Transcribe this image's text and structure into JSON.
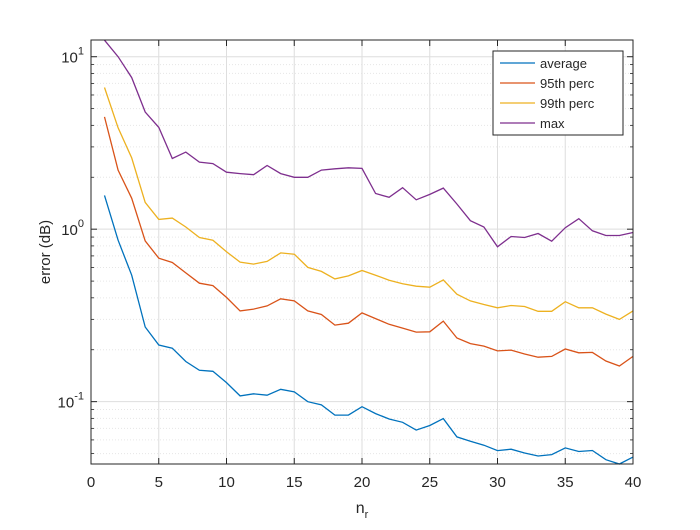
{
  "chart_data": {
    "type": "line",
    "title": "",
    "xlabel": "n",
    "xlabel_subscript": "r",
    "ylabel": "error (dB)",
    "xlim": [
      0,
      40
    ],
    "ylim": [
      0.0435,
      12.5
    ],
    "yscale": "log",
    "grid": true,
    "legend_position": "top-right",
    "xticks": [
      0,
      5,
      10,
      15,
      20,
      25,
      30,
      35,
      40
    ],
    "xtick_labels": [
      "0",
      "5",
      "10",
      "15",
      "20",
      "25",
      "30",
      "35",
      "40"
    ],
    "yticks": [
      0.1,
      1,
      10
    ],
    "ytick_labels": [
      {
        "base": "10",
        "exp": "-1"
      },
      {
        "base": "10",
        "exp": "0"
      },
      {
        "base": "10",
        "exp": "1"
      }
    ],
    "x": [
      1,
      2,
      3,
      4,
      5,
      6,
      7,
      8,
      9,
      10,
      11,
      12,
      13,
      14,
      15,
      16,
      17,
      18,
      19,
      20,
      21,
      22,
      23,
      24,
      25,
      26,
      27,
      28,
      29,
      30,
      31,
      32,
      33,
      34,
      35,
      36,
      37,
      38,
      39,
      40
    ],
    "series": [
      {
        "name": "average",
        "color": "#0072BD",
        "values": [
          1.57,
          0.863,
          0.541,
          0.271,
          0.213,
          0.204,
          0.171,
          0.152,
          0.15,
          0.129,
          0.108,
          0.111,
          0.109,
          0.118,
          0.114,
          0.1,
          0.0958,
          0.0836,
          0.0836,
          0.0935,
          0.0853,
          0.0793,
          0.0759,
          0.0684,
          0.0727,
          0.0797,
          0.0625,
          0.059,
          0.0559,
          0.052,
          0.053,
          0.0504,
          0.0484,
          0.0493,
          0.0539,
          0.0514,
          0.0521,
          0.0461,
          0.0432,
          0.0477
        ]
      },
      {
        "name": "95th perc",
        "color": "#D95319",
        "values": [
          4.48,
          2.2,
          1.51,
          0.855,
          0.679,
          0.641,
          0.558,
          0.486,
          0.471,
          0.402,
          0.336,
          0.344,
          0.359,
          0.395,
          0.384,
          0.336,
          0.32,
          0.278,
          0.285,
          0.327,
          0.303,
          0.281,
          0.267,
          0.253,
          0.254,
          0.293,
          0.234,
          0.217,
          0.21,
          0.197,
          0.199,
          0.189,
          0.181,
          0.183,
          0.202,
          0.192,
          0.193,
          0.172,
          0.161,
          0.183
        ]
      },
      {
        "name": "99th perc",
        "color": "#EDB120",
        "values": [
          6.63,
          3.87,
          2.59,
          1.43,
          1.14,
          1.16,
          1.03,
          0.895,
          0.863,
          0.739,
          0.644,
          0.627,
          0.65,
          0.729,
          0.716,
          0.6,
          0.569,
          0.515,
          0.536,
          0.576,
          0.541,
          0.506,
          0.482,
          0.467,
          0.461,
          0.508,
          0.42,
          0.384,
          0.366,
          0.35,
          0.361,
          0.356,
          0.334,
          0.334,
          0.38,
          0.35,
          0.35,
          0.322,
          0.3,
          0.336
        ]
      },
      {
        "name": "max",
        "color": "#7E2F8E",
        "values": [
          12.46,
          10.0,
          7.57,
          4.78,
          3.89,
          2.57,
          2.8,
          2.45,
          2.4,
          2.14,
          2.1,
          2.07,
          2.34,
          2.1,
          2.0,
          2.0,
          2.2,
          2.24,
          2.27,
          2.25,
          1.61,
          1.53,
          1.74,
          1.48,
          1.59,
          1.73,
          1.4,
          1.12,
          1.03,
          0.79,
          0.907,
          0.895,
          0.944,
          0.852,
          1.02,
          1.15,
          0.978,
          0.919,
          0.919,
          0.957
        ]
      }
    ]
  }
}
